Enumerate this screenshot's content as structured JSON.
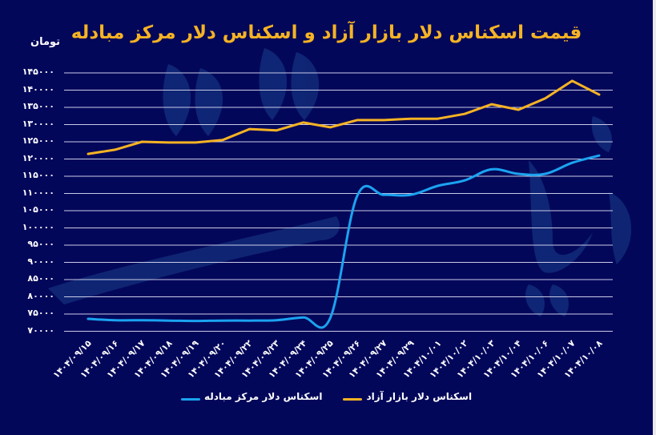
{
  "title": "قیمت اسکناس دلار بازار آزاد و اسکناس دلار مرکز مبادله",
  "unit_label": "تومان",
  "colors": {
    "background": "#03075a",
    "free_market": "#f5b324",
    "exchange_center": "#1ba3f0",
    "grid": "#c9cbe6"
  },
  "y_ticks": [
    "۱۴۵۰۰۰",
    "۱۴۰۰۰۰",
    "۱۳۵۰۰۰",
    "۱۳۰۰۰۰",
    "۱۲۵۰۰۰",
    "۱۲۰۰۰۰",
    "۱۱۵۰۰۰",
    "۱۱۰۰۰۰",
    "۱۰۵۰۰۰",
    "۱۰۰۰۰۰",
    "۹۵۰۰۰",
    "۹۰۰۰۰",
    "۸۵۰۰۰",
    "۸۰۰۰۰",
    "۷۵۰۰۰",
    "۷۰۰۰۰"
  ],
  "legend": {
    "free_market": "اسکناس دلار بازار آزاد",
    "exchange_center": "اسکناس دلار مرکز مبادله"
  },
  "chart_data": {
    "type": "line",
    "title": "قیمت اسکناس دلار بازار آزاد و اسکناس دلار مرکز مبادله",
    "xlabel": "",
    "ylabel": "تومان",
    "ylim": [
      70000,
      145000
    ],
    "y_tick_step": 5000,
    "grid": true,
    "legend_position": "bottom",
    "categories": [
      "۱۴۰۴/۰۹/۱۵",
      "۱۴۰۴/۰۹/۱۶",
      "۱۴۰۴/۰۹/۱۷",
      "۱۴۰۴/۰۹/۱۸",
      "۱۴۰۴/۰۹/۱۹",
      "۱۴۰۴/۰۹/۲۰",
      "۱۴۰۴/۰۹/۲۲",
      "۱۴۰۴/۰۹/۲۳",
      "۱۴۰۴/۰۹/۲۴",
      "۱۴۰۴/۰۹/۲۵",
      "۱۴۰۴/۰۹/۲۶",
      "۱۴۰۴/۰۹/۲۷",
      "۱۴۰۴/۰۹/۲۹",
      "۱۴۰۴/۱۰/۰۱",
      "۱۴۰۴/۱۰/۰۲",
      "۱۴۰۴/۱۰/۰۳",
      "۱۴۰۴/۱۰/۰۴",
      "۱۴۰۴/۱۰/۰۶",
      "۱۴۰۴/۱۰/۰۷",
      "۱۴۰۴/۱۰/۰۸"
    ],
    "series": [
      {
        "name": "اسکناس دلار بازار آزاد",
        "color": "#f5b324",
        "values": [
          121500,
          122700,
          125000,
          124800,
          124800,
          125500,
          128700,
          128300,
          130600,
          129200,
          131300,
          131300,
          131700,
          131700,
          133100,
          135900,
          134300,
          137600,
          142700,
          138700
        ]
      },
      {
        "name": "اسکناس دلار مرکز مبادله",
        "color": "#1ba3f0",
        "values": [
          73600,
          73200,
          73200,
          73100,
          73000,
          73100,
          73100,
          73200,
          74000,
          73800,
          109200,
          109600,
          109600,
          112200,
          113800,
          117000,
          115700,
          115700,
          118900,
          121000
        ]
      }
    ]
  }
}
